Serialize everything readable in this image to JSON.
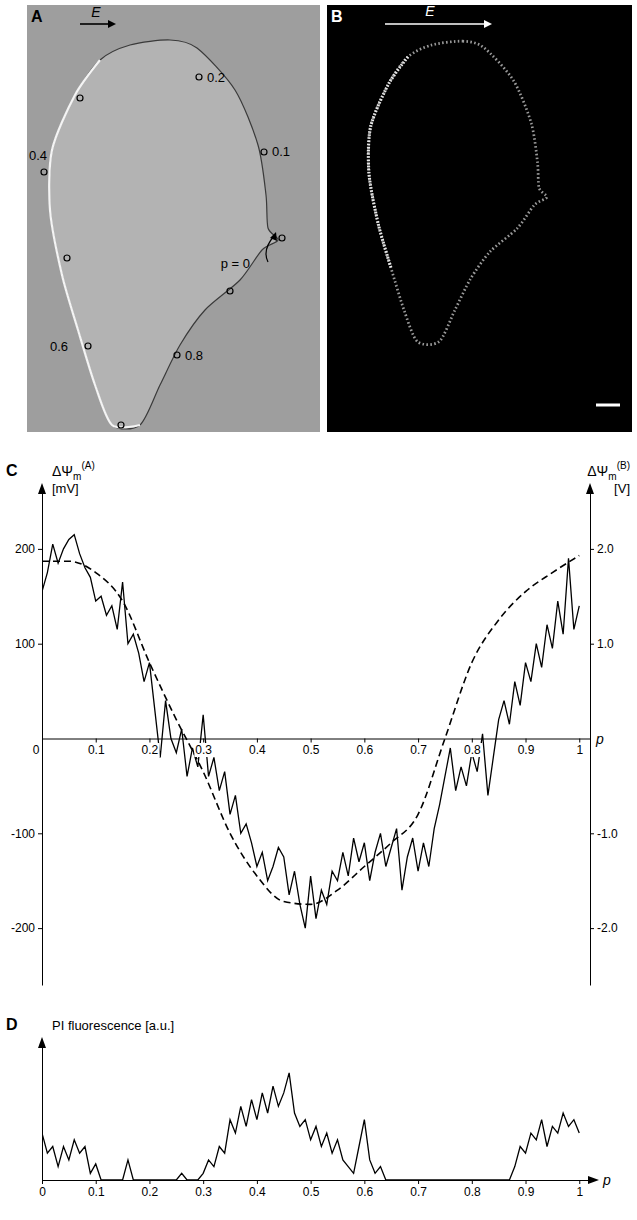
{
  "images": [
    {
      "letter": "A",
      "field_label": "E",
      "ground": "#9e9e9e",
      "points": [
        0,
        0.1,
        0.2,
        0.3,
        0.4,
        0.5,
        0.6,
        0.7,
        0.8,
        0.9
      ],
      "point_labels": [
        "p = 0",
        "0.1",
        "0.2",
        null,
        "0.4",
        null,
        "0.6",
        null,
        "0.8",
        null
      ]
    },
    {
      "letter": "B",
      "field_label": "E",
      "ground": "#000000"
    }
  ],
  "chart_data": [
    {
      "type": "line",
      "panel": "C",
      "x_label": "p",
      "y_label": {
        "symbol": "ΔΨ",
        "sub": "m",
        "sup": "(A)",
        "unit": "[mV]"
      },
      "y2_label": {
        "symbol": "ΔΨ",
        "sub": "m",
        "sup": "(B)",
        "unit": "[V]"
      },
      "xlim": [
        0,
        1.02
      ],
      "xticks": [
        0,
        0.1,
        0.2,
        0.3,
        0.4,
        0.5,
        0.6,
        0.7,
        0.8,
        0.9,
        1
      ],
      "ylim": [
        -260,
        260
      ],
      "yticks": [
        200,
        100,
        -100,
        -200
      ],
      "y2lim": [
        -2.6,
        2.6
      ],
      "y2ticks": [
        {
          "value": 2,
          "label": "2.0"
        },
        {
          "value": 1,
          "label": "1.0"
        },
        {
          "value": -1,
          "label": "-1.0"
        },
        {
          "value": -2,
          "label": "-2.0"
        }
      ],
      "series": [
        {
          "color": "#000000",
          "line_style": "solid",
          "x": [
            0,
            0.01,
            0.02,
            0.03,
            0.04,
            0.05,
            0.06,
            0.07,
            0.08,
            0.09,
            0.1,
            0.11,
            0.12,
            0.13,
            0.14,
            0.15,
            0.16,
            0.17,
            0.18,
            0.19,
            0.2,
            0.21,
            0.22,
            0.23,
            0.24,
            0.25,
            0.26,
            0.27,
            0.28,
            0.29,
            0.3,
            0.31,
            0.32,
            0.33,
            0.34,
            0.35,
            0.36,
            0.37,
            0.38,
            0.39,
            0.4,
            0.41,
            0.42,
            0.43,
            0.44,
            0.45,
            0.46,
            0.47,
            0.48,
            0.49,
            0.5,
            0.51,
            0.52,
            0.53,
            0.54,
            0.55,
            0.56,
            0.57,
            0.58,
            0.59,
            0.6,
            0.61,
            0.62,
            0.63,
            0.64,
            0.65,
            0.66,
            0.67,
            0.68,
            0.69,
            0.7,
            0.71,
            0.72,
            0.73,
            0.74,
            0.75,
            0.76,
            0.77,
            0.78,
            0.79,
            0.8,
            0.81,
            0.82,
            0.83,
            0.84,
            0.85,
            0.86,
            0.87,
            0.88,
            0.89,
            0.9,
            0.91,
            0.92,
            0.93,
            0.94,
            0.95,
            0.96,
            0.97,
            0.98,
            0.99,
            1
          ],
          "values": [
            155,
            175,
            205,
            185,
            200,
            210,
            215,
            195,
            180,
            170,
            145,
            150,
            130,
            140,
            115,
            165,
            100,
            110,
            90,
            60,
            80,
            30,
            -20,
            40,
            0,
            -15,
            10,
            -40,
            -10,
            -30,
            25,
            -40,
            -20,
            -55,
            -35,
            -80,
            -60,
            -100,
            -90,
            -110,
            -135,
            -120,
            -150,
            -135,
            -115,
            -125,
            -165,
            -140,
            -175,
            -200,
            -145,
            -190,
            -160,
            -175,
            -140,
            -150,
            -120,
            -145,
            -105,
            -130,
            -110,
            -150,
            -120,
            -100,
            -135,
            -115,
            -95,
            -160,
            -125,
            -105,
            -140,
            -110,
            -135,
            -95,
            -70,
            -40,
            -10,
            -55,
            -30,
            -50,
            -15,
            -35,
            5,
            -60,
            -20,
            20,
            40,
            15,
            60,
            35,
            80,
            60,
            100,
            75,
            120,
            95,
            145,
            110,
            190,
            115,
            140
          ]
        },
        {
          "color": "#000000",
          "line_style": "dashed",
          "axis": "y2",
          "x": [
            0,
            0.05,
            0.1,
            0.15,
            0.2,
            0.25,
            0.3,
            0.35,
            0.4,
            0.45,
            0.5,
            0.55,
            0.6,
            0.65,
            0.7,
            0.75,
            0.8,
            0.85,
            0.9,
            0.95,
            1
          ],
          "values": [
            1.87,
            1.87,
            1.75,
            1.45,
            0.8,
            0.2,
            -0.35,
            -1.0,
            -1.45,
            -1.72,
            -1.75,
            -1.6,
            -1.35,
            -1.1,
            -0.8,
            0.0,
            0.8,
            1.25,
            1.55,
            1.75,
            1.93
          ]
        }
      ]
    },
    {
      "type": "line",
      "panel": "D",
      "x_label": "p",
      "y_label": "PI fluorescence [a.u.]",
      "xlim": [
        0,
        1.02
      ],
      "xticks": [
        0,
        0.1,
        0.2,
        0.3,
        0.4,
        0.5,
        0.6,
        0.7,
        0.8,
        0.9,
        1
      ],
      "ylim": [
        0,
        100
      ],
      "tick_labels": "x",
      "x": [
        0,
        0.01,
        0.02,
        0.03,
        0.04,
        0.05,
        0.06,
        0.07,
        0.08,
        0.09,
        0.1,
        0.11,
        0.12,
        0.13,
        0.14,
        0.15,
        0.16,
        0.17,
        0.18,
        0.19,
        0.2,
        0.21,
        0.22,
        0.23,
        0.24,
        0.25,
        0.26,
        0.27,
        0.28,
        0.29,
        0.3,
        0.31,
        0.32,
        0.33,
        0.34,
        0.35,
        0.36,
        0.37,
        0.38,
        0.39,
        0.4,
        0.41,
        0.42,
        0.43,
        0.44,
        0.45,
        0.46,
        0.47,
        0.48,
        0.49,
        0.5,
        0.51,
        0.52,
        0.53,
        0.54,
        0.55,
        0.56,
        0.57,
        0.58,
        0.59,
        0.6,
        0.61,
        0.62,
        0.63,
        0.64,
        0.65,
        0.66,
        0.67,
        0.68,
        0.69,
        0.7,
        0.71,
        0.72,
        0.73,
        0.74,
        0.75,
        0.76,
        0.77,
        0.78,
        0.79,
        0.8,
        0.81,
        0.82,
        0.83,
        0.84,
        0.85,
        0.86,
        0.87,
        0.88,
        0.89,
        0.9,
        0.91,
        0.92,
        0.93,
        0.94,
        0.95,
        0.96,
        0.97,
        0.98,
        0.99,
        1
      ],
      "series": [
        {
          "color": "#000000",
          "line_style": "solid",
          "values": [
            35,
            20,
            25,
            10,
            25,
            15,
            30,
            20,
            25,
            5,
            12,
            0,
            0,
            0,
            0,
            0,
            15,
            0,
            0,
            0,
            0,
            0,
            0,
            0,
            0,
            0,
            5,
            0,
            0,
            0,
            5,
            15,
            10,
            25,
            20,
            45,
            35,
            55,
            40,
            60,
            45,
            65,
            50,
            70,
            55,
            65,
            80,
            50,
            40,
            45,
            30,
            40,
            25,
            35,
            20,
            30,
            15,
            10,
            5,
            25,
            45,
            15,
            5,
            10,
            0,
            0,
            0,
            0,
            0,
            0,
            0,
            0,
            0,
            0,
            0,
            0,
            0,
            0,
            0,
            0,
            0,
            0,
            0,
            0,
            0,
            0,
            0,
            0,
            10,
            25,
            20,
            35,
            30,
            45,
            25,
            40,
            35,
            50,
            40,
            45,
            35
          ]
        }
      ]
    }
  ]
}
